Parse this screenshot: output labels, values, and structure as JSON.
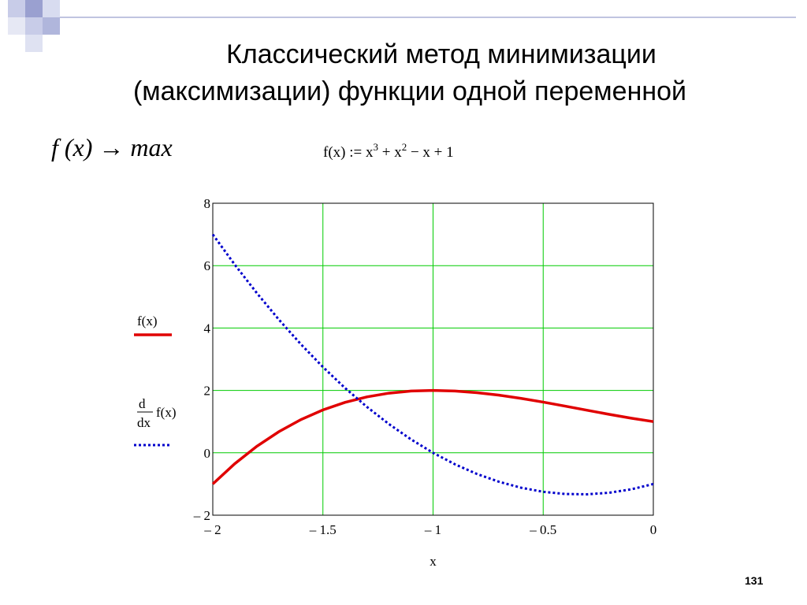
{
  "header": {
    "title_lines": [
      "Классический метод минимизации",
      "(максимизации) функции одной переменной"
    ],
    "goal": "f (x) → max",
    "definition": [
      "f(x) := x",
      "3",
      " + x",
      "2",
      " − x + 1"
    ]
  },
  "page_number": "131",
  "chart_data": {
    "type": "line",
    "x_label": "x",
    "x": [
      -2,
      -1.9,
      -1.8,
      -1.7,
      -1.6,
      -1.5,
      -1.4,
      -1.3,
      -1.2,
      -1.1,
      -1,
      -0.9,
      -0.8,
      -0.7,
      -0.6,
      -0.5,
      -0.4,
      -0.3,
      -0.2,
      -0.1,
      0
    ],
    "series": [
      {
        "name": "f(x)",
        "color": "#e00000",
        "style": "solid",
        "values": [
          -1,
          -0.349,
          0.208,
          0.677,
          1.064,
          1.375,
          1.616,
          1.793,
          1.912,
          1.979,
          2,
          1.981,
          1.928,
          1.847,
          1.744,
          1.625,
          1.496,
          1.363,
          1.232,
          1.109,
          1
        ]
      },
      {
        "name": {
          "numerator": "d",
          "denominator": "dx",
          "operand": "f(x)"
        },
        "color": "#0000cc",
        "style": "dotted",
        "values": [
          7,
          6.03,
          5.12,
          4.27,
          3.48,
          2.75,
          2.08,
          1.47,
          0.92,
          0.43,
          0,
          -0.37,
          -0.68,
          -0.93,
          -1.12,
          -1.25,
          -1.32,
          -1.33,
          -1.28,
          -1.17,
          -1
        ]
      }
    ],
    "xlim": [
      -2,
      0
    ],
    "xticks": [
      {
        "value": -2,
        "label": "– 2"
      },
      {
        "value": -1.5,
        "label": "– 1.5"
      },
      {
        "value": -1,
        "label": "– 1"
      },
      {
        "value": -0.5,
        "label": "– 0.5"
      },
      0
    ],
    "ylim": [
      -2,
      8
    ],
    "yticks": [
      {
        "value": -2,
        "label": "– 2"
      },
      0,
      2,
      4,
      6,
      8
    ],
    "grid": true,
    "grid_color": "#00cc00",
    "legend": "left"
  }
}
